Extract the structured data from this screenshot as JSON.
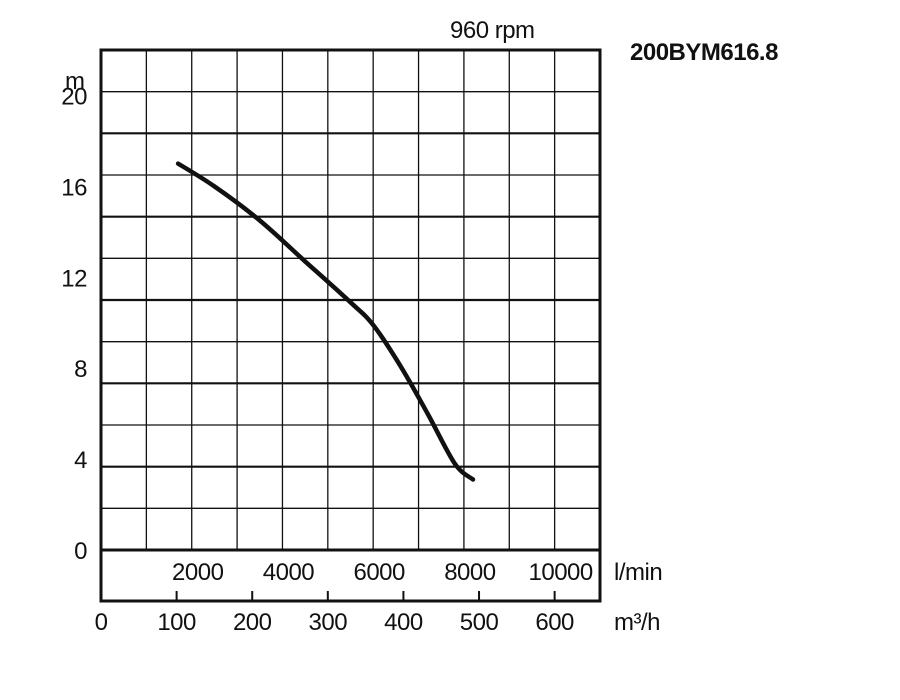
{
  "chart_data": {
    "type": "line",
    "title": "200BYM616.8",
    "subtitle": "960 rpm",
    "ylabel": "m",
    "xlabel_primary": "l/min",
    "xlabel_secondary": "m³/h",
    "ylim": [
      0,
      22
    ],
    "xlim_lmin": [
      0,
      11000
    ],
    "xlim_m3h": [
      0,
      660
    ],
    "y_ticks": [
      "0",
      "4",
      "8",
      "12",
      "16",
      "20"
    ],
    "x_ticks_lmin": [
      "2000",
      "4000",
      "6000",
      "8000",
      "10000"
    ],
    "x_ticks_m3h": [
      "0",
      "100",
      "200",
      "300",
      "400",
      "500",
      "600"
    ],
    "grid": true,
    "series": [
      {
        "name": "",
        "x_lmin": [
          1700,
          2500,
          3500,
          4500,
          5500,
          6000,
          6600,
          7200,
          7800,
          8200
        ],
        "y": [
          17.0,
          16.0,
          14.5,
          12.7,
          10.9,
          9.9,
          8.1,
          6.0,
          3.8,
          3.1
        ]
      }
    ]
  }
}
